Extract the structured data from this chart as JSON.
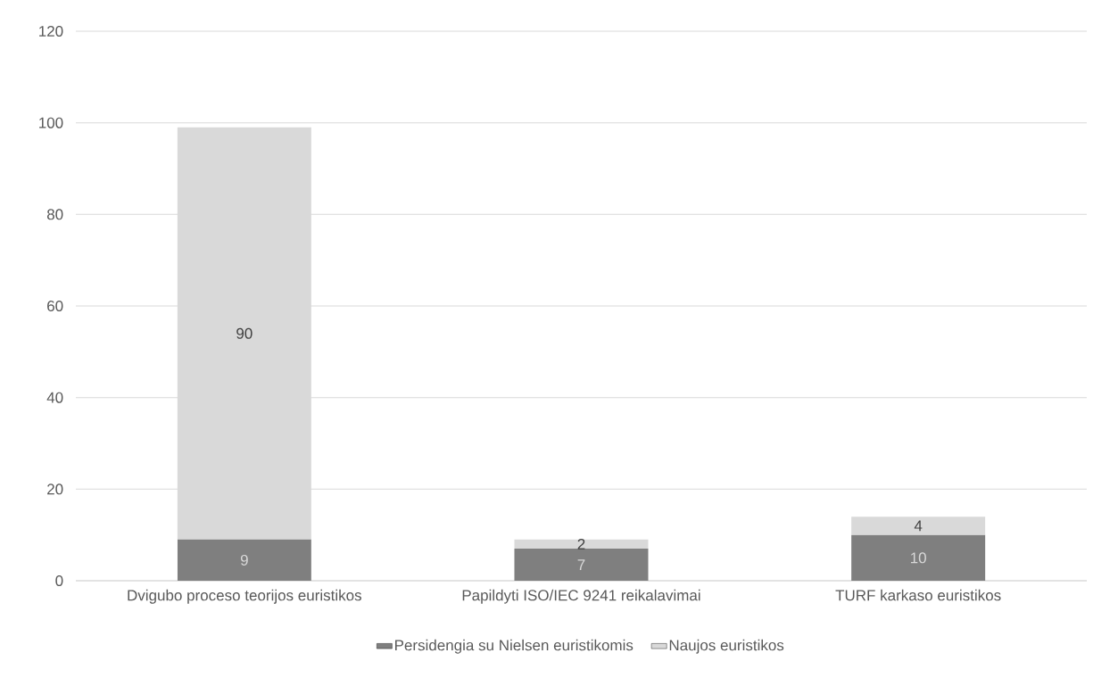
{
  "chart_data": {
    "type": "bar",
    "stacked": true,
    "categories": [
      "Dvigubo proceso teorijos euristikos",
      "Papildyti ISO/IEC 9241 reikalavimai",
      "TURF karkaso euristikos"
    ],
    "series": [
      {
        "name": "Persidengia su Nielsen euristikomis",
        "color": "#7f7f7f",
        "values": [
          9,
          7,
          10
        ]
      },
      {
        "name": "Naujos euristikos",
        "color": "#d9d9d9",
        "values": [
          90,
          2,
          4
        ]
      }
    ],
    "ylim": [
      0,
      120
    ],
    "yticks": [
      0,
      20,
      40,
      60,
      80,
      100,
      120
    ],
    "grid": "y",
    "legend": "bottom",
    "data_labels": true
  }
}
